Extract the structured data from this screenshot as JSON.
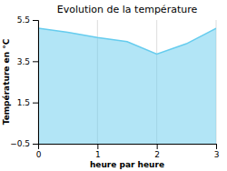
{
  "chart_data": {
    "type": "area",
    "title": "Evolution de la température",
    "x_label": "heure par heure",
    "y_label": "Température en °C",
    "x": [
      0,
      0.5,
      1.0,
      1.5,
      2.0,
      2.5,
      3.0
    ],
    "values": [
      5.1,
      4.9,
      4.65,
      4.45,
      3.85,
      4.35,
      5.1
    ],
    "xlim": [
      0,
      3
    ],
    "ylim": [
      -0.5,
      5.5
    ],
    "xticks": [
      0,
      1,
      2,
      3
    ],
    "yticks": [
      -0.5,
      1.5,
      3.5,
      5.5
    ],
    "color": "#66ccee",
    "grid": "x"
  }
}
